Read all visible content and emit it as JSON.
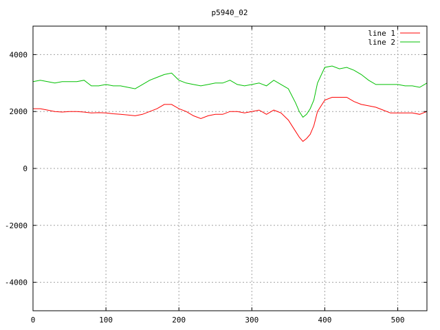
{
  "chart_data": {
    "type": "line",
    "title": "p5940_02",
    "xlabel": "",
    "ylabel": "",
    "xlim": [
      0,
      540
    ],
    "ylim": [
      -5000,
      5000
    ],
    "xticks": [
      0,
      100,
      200,
      300,
      400,
      500
    ],
    "yticks": [
      -4000,
      -2000,
      0,
      2000,
      4000
    ],
    "grid": true,
    "legend_position": "top-right",
    "series": [
      {
        "name": "line 1",
        "color": "#ff0000",
        "x": [
          0,
          10,
          20,
          30,
          40,
          50,
          60,
          70,
          80,
          90,
          100,
          110,
          120,
          130,
          140,
          150,
          160,
          170,
          180,
          190,
          200,
          210,
          220,
          230,
          240,
          250,
          260,
          270,
          280,
          290,
          300,
          310,
          320,
          330,
          340,
          350,
          360,
          365,
          370,
          375,
          380,
          385,
          390,
          400,
          410,
          420,
          430,
          440,
          450,
          460,
          470,
          480,
          490,
          500,
          510,
          520,
          530,
          540
        ],
        "y": [
          2100,
          2100,
          2050,
          2000,
          1980,
          2000,
          2000,
          1980,
          1950,
          1960,
          1950,
          1920,
          1900,
          1880,
          1850,
          1900,
          2000,
          2100,
          2250,
          2250,
          2100,
          2000,
          1850,
          1750,
          1850,
          1900,
          1900,
          2000,
          2000,
          1950,
          2000,
          2050,
          1900,
          2050,
          1950,
          1700,
          1300,
          1100,
          950,
          1050,
          1200,
          1500,
          2000,
          2400,
          2500,
          2500,
          2500,
          2350,
          2250,
          2200,
          2150,
          2050,
          1950,
          1950,
          1950,
          1950,
          1900,
          2000
        ]
      },
      {
        "name": "line 2",
        "color": "#00c000",
        "x": [
          0,
          10,
          20,
          30,
          40,
          50,
          60,
          70,
          80,
          90,
          100,
          110,
          120,
          130,
          140,
          150,
          160,
          170,
          180,
          190,
          200,
          210,
          220,
          230,
          240,
          250,
          260,
          270,
          280,
          290,
          300,
          310,
          320,
          330,
          340,
          350,
          360,
          365,
          370,
          375,
          380,
          385,
          390,
          400,
          410,
          420,
          430,
          440,
          450,
          460,
          470,
          480,
          490,
          500,
          510,
          520,
          530,
          540
        ],
        "y": [
          3050,
          3100,
          3050,
          3000,
          3050,
          3050,
          3050,
          3100,
          2900,
          2900,
          2950,
          2900,
          2900,
          2850,
          2800,
          2950,
          3100,
          3200,
          3300,
          3350,
          3100,
          3000,
          2950,
          2900,
          2950,
          3000,
          3000,
          3100,
          2950,
          2900,
          2950,
          3000,
          2900,
          3100,
          2950,
          2800,
          2300,
          2000,
          1800,
          1900,
          2100,
          2400,
          3000,
          3550,
          3600,
          3500,
          3550,
          3450,
          3300,
          3100,
          2950,
          2950,
          2950,
          2950,
          2900,
          2900,
          2850,
          3000
        ]
      }
    ]
  }
}
